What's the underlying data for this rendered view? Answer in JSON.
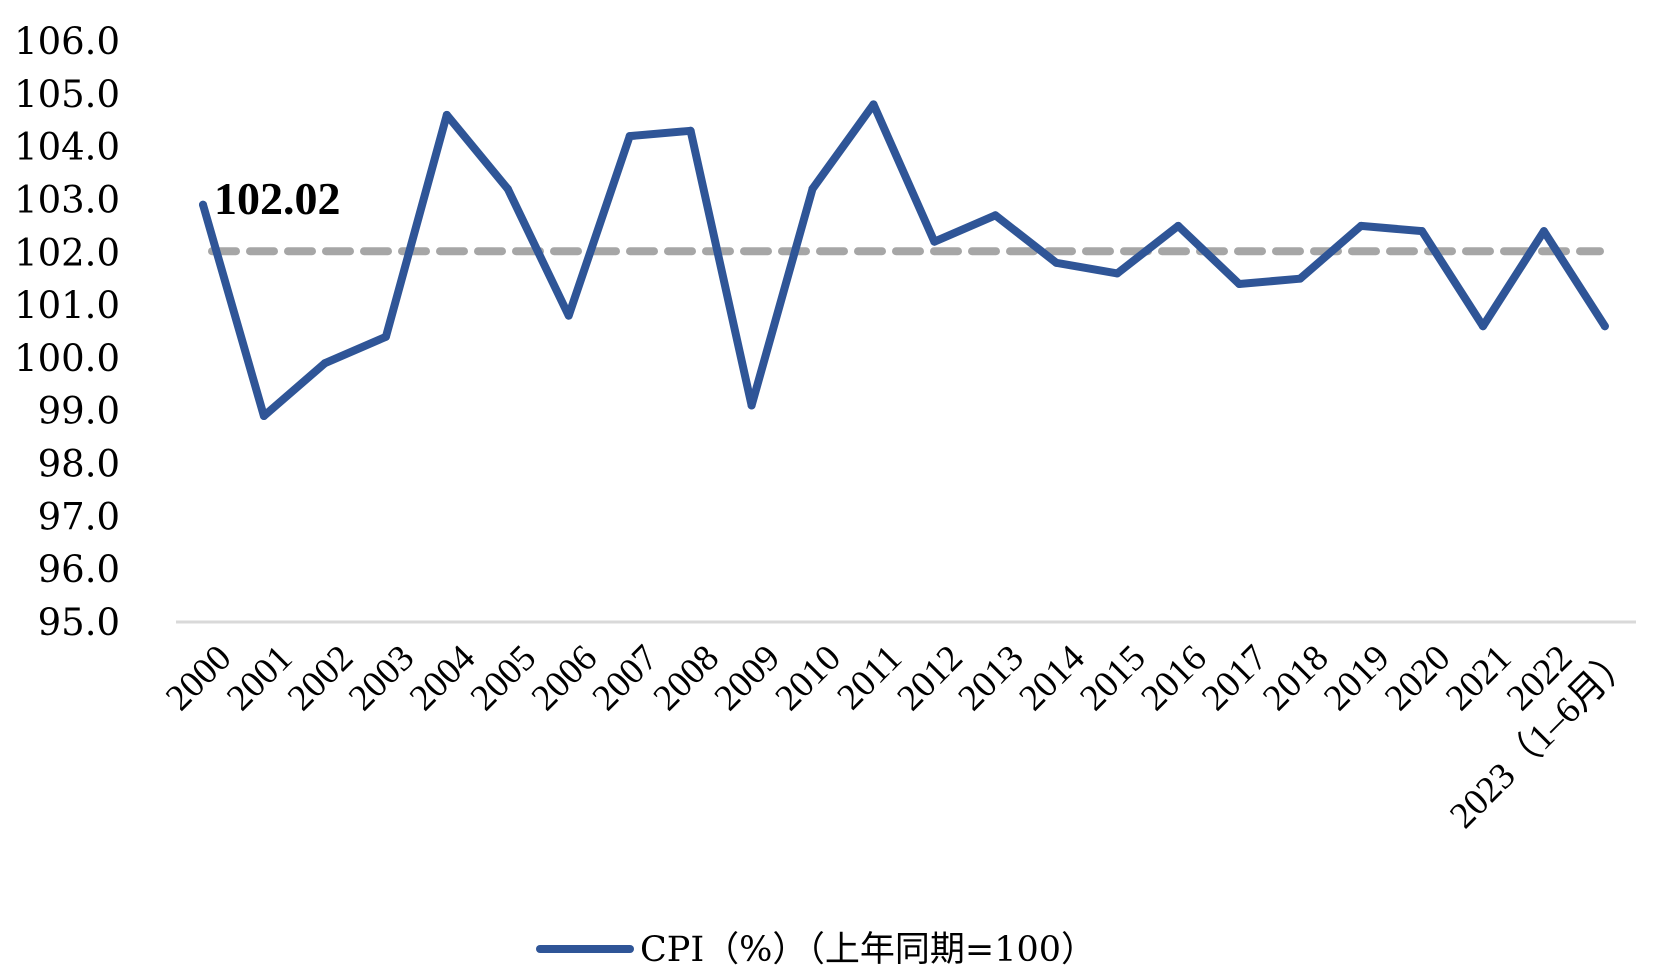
{
  "chart_data": {
    "type": "line",
    "title": "",
    "xlabel": "",
    "ylabel": "",
    "ylim": [
      95.0,
      106.0
    ],
    "y_ticks": [
      "95.0",
      "96.0",
      "97.0",
      "98.0",
      "99.0",
      "100.0",
      "101.0",
      "102.0",
      "103.0",
      "104.0",
      "105.0",
      "106.0"
    ],
    "categories": [
      "2000",
      "2001",
      "2002",
      "2003",
      "2004",
      "2005",
      "2006",
      "2007",
      "2008",
      "2009",
      "2010",
      "2011",
      "2012",
      "2013",
      "2014",
      "2015",
      "2016",
      "2017",
      "2018",
      "2019",
      "2020",
      "2021",
      "2022",
      "2023（1–6月）"
    ],
    "series": [
      {
        "name": "CPI（%）（上年同期=100）",
        "color": "#2f5597",
        "values": [
          102.9,
          98.9,
          99.9,
          100.4,
          104.6,
          103.2,
          100.8,
          104.2,
          104.3,
          99.1,
          103.2,
          104.8,
          102.2,
          102.7,
          101.8,
          101.6,
          102.5,
          101.4,
          101.5,
          102.5,
          102.4,
          100.6,
          102.4,
          100.6
        ]
      }
    ],
    "reference_line": {
      "value": 102.02,
      "label": "102.02",
      "color": "#a6a6a6",
      "style": "dashed"
    },
    "legend": {
      "placement": "bottom-center",
      "label": "CPI（%）（上年同期=100）"
    },
    "grid": false
  }
}
